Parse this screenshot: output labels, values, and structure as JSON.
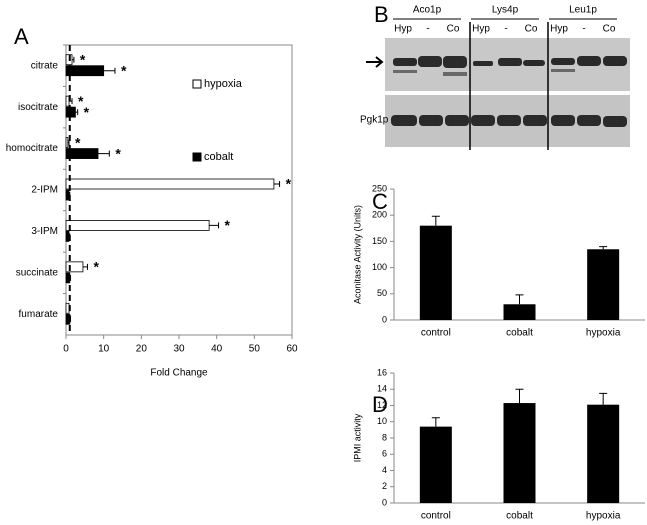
{
  "chart_data": [
    {
      "type": "hbar",
      "panel": "A",
      "xlabel": "Fold Change",
      "categories": [
        "citrate",
        "isocitrate",
        "homocitrate",
        "2-IPM",
        "3-IPM",
        "succinate",
        "fumarate"
      ],
      "series": [
        {
          "name": "hypoxia",
          "color": "#ffffff",
          "values": [
            1.6,
            0.8,
            0.5,
            55.2,
            38,
            4.5,
            0.8
          ],
          "errors": [
            0.5,
            0.8,
            0.3,
            1.5,
            2.5,
            1.2,
            0.2
          ],
          "significance": [
            "*",
            "*",
            "*",
            "*",
            "*",
            "*",
            null
          ]
        },
        {
          "name": "cobalt",
          "color": "#000000",
          "values": [
            10,
            2.5,
            8.5,
            0.8,
            0.8,
            1,
            1
          ],
          "errors": [
            3,
            0.6,
            3,
            0.2,
            0.2,
            0.2,
            0.2
          ],
          "significance": [
            "*",
            "*",
            "*",
            null,
            null,
            null,
            null
          ]
        }
      ],
      "reference_line": 1,
      "xlim": [
        0,
        60
      ],
      "xticks": [
        0,
        10,
        20,
        30,
        40,
        50,
        60
      ]
    },
    {
      "type": "bar",
      "panel": "C",
      "ylabel": "Aconitase Activity (Units)",
      "categories": [
        "control",
        "cobalt",
        "hypoxia"
      ],
      "values": [
        180,
        30,
        135
      ],
      "errors": [
        18,
        18,
        5
      ],
      "color": "#000000",
      "ylim": [
        0,
        250
      ],
      "yticks": [
        0,
        50,
        100,
        150,
        200,
        250
      ]
    },
    {
      "type": "bar",
      "panel": "D",
      "ylabel": "IPMI activity",
      "categories": [
        "control",
        "cobalt",
        "hypoxia"
      ],
      "values": [
        9.4,
        12.3,
        12.1
      ],
      "errors": [
        1.1,
        1.7,
        1.4
      ],
      "color": "#000000",
      "ylim": [
        0,
        16
      ],
      "yticks": [
        0,
        2,
        4,
        6,
        8,
        10,
        12,
        14,
        16
      ]
    }
  ],
  "gel": {
    "panel": "B",
    "loading_control": "Pgk1p",
    "groups": [
      {
        "name": "Aco1p",
        "lanes": [
          "Hyp",
          "-",
          "Co"
        ]
      },
      {
        "name": "Lys4p",
        "lanes": [
          "Hyp",
          "-",
          "Co"
        ]
      },
      {
        "name": "Leu1p",
        "lanes": [
          "Hyp",
          "-",
          "Co"
        ]
      }
    ]
  }
}
